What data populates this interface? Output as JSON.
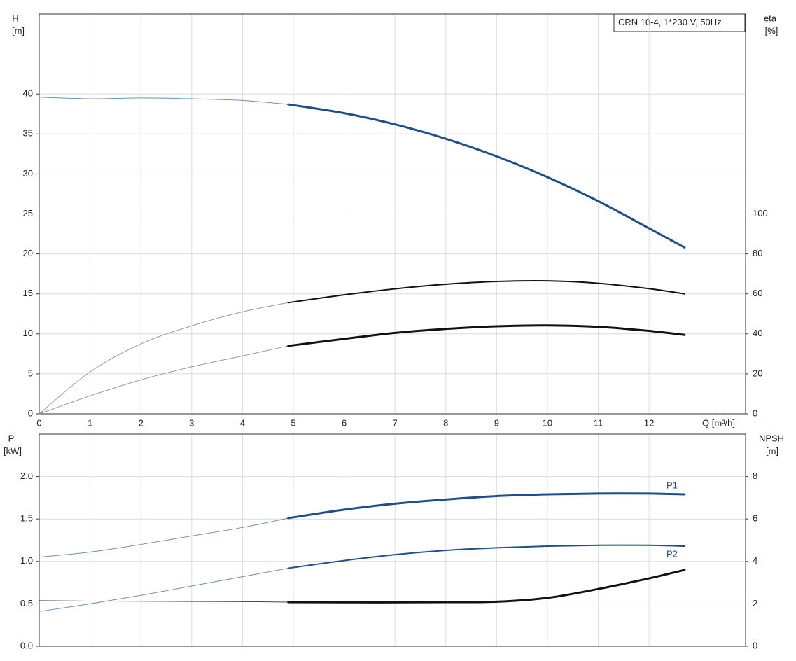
{
  "chart_data": [
    {
      "type": "line",
      "title": "CRN 10-4, 1*230 V, 50Hz",
      "xlabel": "Q [m³/h]",
      "ylabel": [
        "H",
        "[m]"
      ],
      "y2label": [
        "eta",
        "[%]"
      ],
      "xlim": [
        0,
        13.9
      ],
      "ylim": [
        0,
        50
      ],
      "y2lim": [
        0,
        200
      ],
      "xticks": [
        0,
        1,
        2,
        3,
        4,
        5,
        6,
        7,
        8,
        9,
        10,
        11,
        12
      ],
      "yticks": [
        0,
        5,
        10,
        15,
        20,
        25,
        30,
        35,
        40
      ],
      "y2ticks": [
        0,
        20,
        40,
        60,
        80,
        100
      ],
      "grid": true,
      "series": [
        {
          "x": [
            0,
            1,
            2,
            3,
            4,
            4.9
          ],
          "values": [
            39.6,
            39.4,
            39.5,
            39.4,
            39.2,
            38.7
          ],
          "color": "#6a8fb8",
          "width": 1
        },
        {
          "x": [
            4.9,
            6,
            7,
            8,
            9,
            10,
            11,
            12,
            12.7
          ],
          "values": [
            38.7,
            37.6,
            36.2,
            34.4,
            32.2,
            29.6,
            26.6,
            23.2,
            20.8
          ],
          "color": "#1f4e8c",
          "width": 3
        },
        {
          "x": [
            0,
            1,
            2,
            3,
            4,
            4.9
          ],
          "values": [
            0,
            21,
            35,
            44,
            51,
            55.6
          ],
          "color": "#999999",
          "width": 1,
          "axis": "y2"
        },
        {
          "x": [
            4.9,
            6,
            7,
            8,
            9,
            10,
            11,
            12,
            12.7
          ],
          "values": [
            55.6,
            59.5,
            62.5,
            64.8,
            66.2,
            66.5,
            65.3,
            62.6,
            60
          ],
          "color": "#111111",
          "width": 2,
          "axis": "y2"
        },
        {
          "x": [
            0,
            1,
            2,
            3,
            4,
            4.9
          ],
          "values": [
            0,
            9,
            17,
            23.5,
            29,
            34
          ],
          "color": "#999999",
          "width": 1,
          "axis": "y2"
        },
        {
          "x": [
            4.9,
            6,
            7,
            8,
            9,
            10,
            11,
            12,
            12.7
          ],
          "values": [
            34,
            37.5,
            40.5,
            42.5,
            43.8,
            44.2,
            43.5,
            41.5,
            39.5
          ],
          "color": "#111111",
          "width": 3,
          "axis": "y2"
        }
      ]
    },
    {
      "type": "line",
      "ylabel": [
        "P",
        "[kW]"
      ],
      "y2label": [
        "NPSH",
        "[m]"
      ],
      "xlim": [
        0,
        13.9
      ],
      "ylim": [
        0,
        2.5
      ],
      "y2lim": [
        0,
        10
      ],
      "yticks": [
        {
          "value": 0,
          "label": "0.0"
        },
        0.5,
        {
          "value": 1,
          "label": "1.0"
        },
        1.5,
        {
          "value": 2,
          "label": "2.0"
        }
      ],
      "y2ticks": [
        0,
        2,
        4,
        6,
        8
      ],
      "grid": true,
      "series": [
        {
          "x": [
            0,
            1,
            2,
            3,
            4,
            4.9
          ],
          "values": [
            1.05,
            1.11,
            1.2,
            1.3,
            1.4,
            1.51
          ],
          "color": "#6a8fb8",
          "width": 1
        },
        {
          "name": "P1",
          "x": [
            4.9,
            6,
            7,
            8,
            9,
            10,
            11,
            12,
            12.7
          ],
          "values": [
            1.51,
            1.61,
            1.68,
            1.73,
            1.77,
            1.79,
            1.8,
            1.8,
            1.79
          ],
          "color": "#1f4e8c",
          "width": 3
        },
        {
          "x": [
            0,
            1,
            2,
            3,
            4,
            4.9
          ],
          "values": [
            0.41,
            0.5,
            0.6,
            0.71,
            0.82,
            0.92
          ],
          "color": "#6a8fb8",
          "width": 1
        },
        {
          "name": "P2",
          "x": [
            4.9,
            6,
            7,
            8,
            9,
            10,
            11,
            12,
            12.7
          ],
          "values": [
            0.92,
            1.01,
            1.08,
            1.13,
            1.16,
            1.18,
            1.19,
            1.19,
            1.18
          ],
          "color": "#1f4e8c",
          "width": 2
        },
        {
          "x": [
            0,
            1,
            2,
            3,
            4,
            4.9
          ],
          "values": [
            2.15,
            2.13,
            2.12,
            2.11,
            2.1,
            2.08
          ],
          "color": "#444444",
          "width": 1,
          "axis": "y2"
        },
        {
          "x": [
            4.9,
            6,
            7,
            8,
            9,
            10,
            11,
            12,
            12.7
          ],
          "values": [
            2.08,
            2.07,
            2.07,
            2.08,
            2.1,
            2.28,
            2.7,
            3.2,
            3.6
          ],
          "color": "#111111",
          "width": 3,
          "axis": "y2"
        }
      ]
    }
  ]
}
